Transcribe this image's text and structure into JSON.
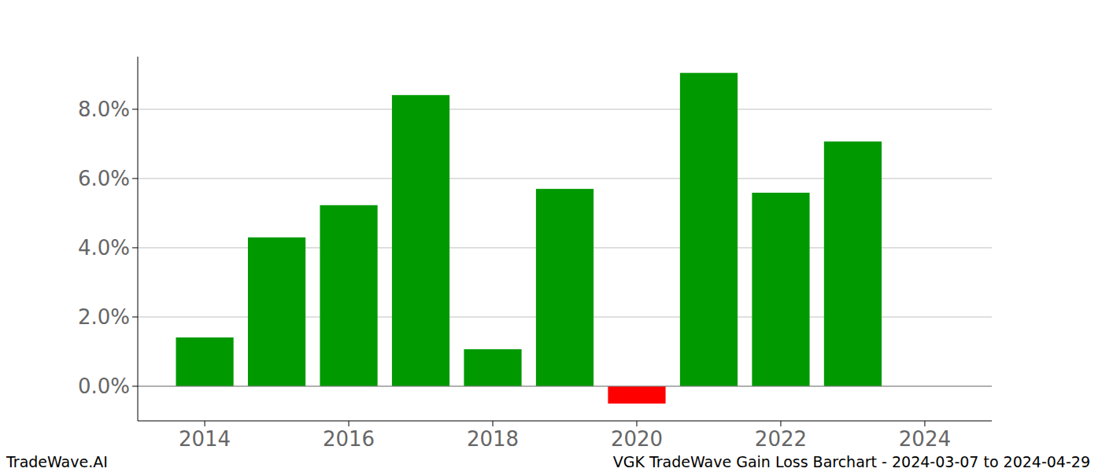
{
  "chart_data": {
    "type": "bar",
    "title": "VGK TradeWave Gain Loss Barchart - 2024-03-07 to 2024-04-29",
    "annotations": [
      "TradeWave.AI"
    ],
    "x": [
      2014,
      2015,
      2016,
      2017,
      2018,
      2019,
      2020,
      2021,
      2022,
      2023
    ],
    "values": [
      1.41,
      4.3,
      5.23,
      8.41,
      1.07,
      5.7,
      -0.5,
      9.05,
      5.59,
      7.07
    ],
    "colors": [
      "#009900",
      "#009900",
      "#009900",
      "#009900",
      "#009900",
      "#009900",
      "#ff0000",
      "#009900",
      "#009900",
      "#009900"
    ],
    "xlim": [
      2013.07,
      2024.93
    ],
    "xticks": [
      2014,
      2016,
      2018,
      2020,
      2022,
      2024
    ],
    "ylim": [
      -1,
      9.52
    ],
    "yticks": [
      {
        "value": 0,
        "label": "0.0%"
      },
      {
        "value": 2,
        "label": "2.0%"
      },
      {
        "value": 4,
        "label": "4.0%"
      },
      {
        "value": 6,
        "label": "6.0%"
      },
      {
        "value": 8,
        "label": "8.0%"
      }
    ],
    "grid": true
  }
}
